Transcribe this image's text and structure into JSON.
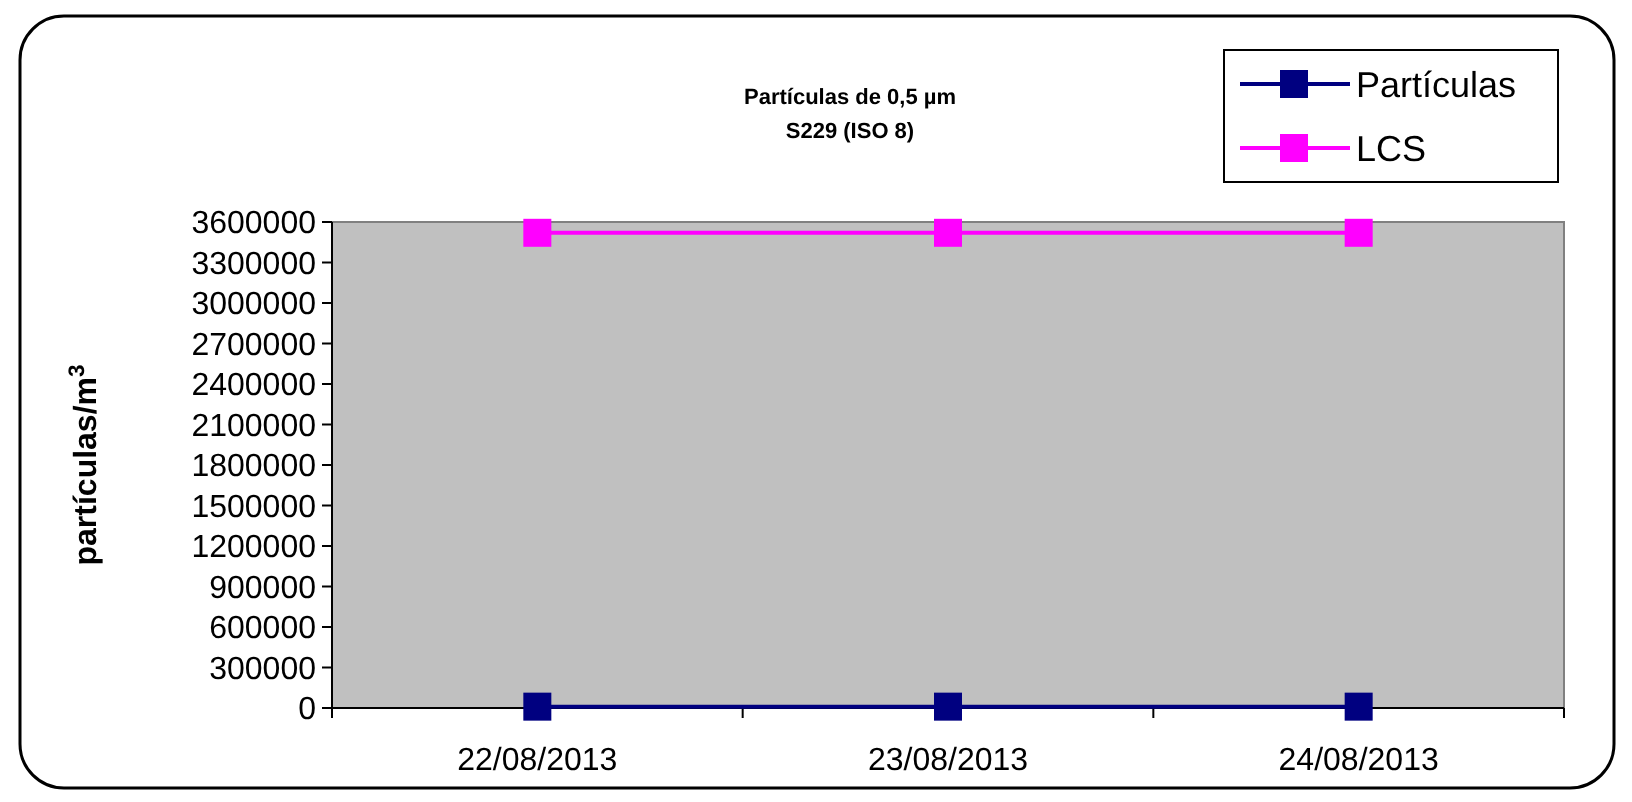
{
  "chart_data": {
    "type": "line",
    "title": "Partículas de  0,5 µm",
    "subtitle": "S229 (ISO 8)",
    "ylabel": "partículas/m$^{3}$",
    "categories": [
      "22/08/2013",
      "23/08/2013",
      "24/08/2013"
    ],
    "series": [
      {
        "name": "Partículas",
        "color": "#000080",
        "values": [
          10000,
          10000,
          10000
        ]
      },
      {
        "name": "LCS",
        "color": "#ff00ff",
        "values": [
          3520000,
          3520000,
          3520000
        ]
      }
    ],
    "ylim": [
      0,
      3600000
    ],
    "yticks": [
      0,
      300000,
      600000,
      900000,
      1200000,
      1500000,
      1800000,
      2100000,
      2400000,
      2700000,
      3000000,
      3300000,
      3600000
    ],
    "marker": "square",
    "legend": "top right",
    "grid": false
  }
}
